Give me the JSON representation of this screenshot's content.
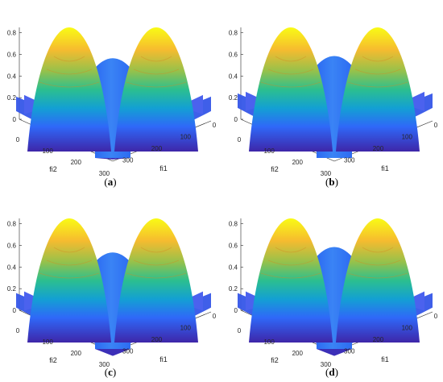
{
  "chart_data": [
    {
      "type": "surface",
      "panel": "(a)",
      "panel_letter": "a",
      "xlabel": "fi2",
      "ylabel": "fi1",
      "x_ticks": [
        "0",
        "100",
        "200",
        "300"
      ],
      "y_ticks": [
        "0",
        "100",
        "200",
        "300"
      ],
      "z_ticks": [
        "0",
        "0.2",
        "0.4",
        "0.6",
        "0.8"
      ],
      "zlim": [
        0,
        0.85
      ],
      "peak_z": 0.85,
      "center_ridge_z": 0.58,
      "edge_wing_z": 0.15,
      "base_z": 0.0,
      "colormap": [
        "#3e26a8",
        "#2f68f8",
        "#13a0d3",
        "#2cbf8f",
        "#97c14a",
        "#f6bb2f",
        "#f9fb15"
      ]
    },
    {
      "type": "surface",
      "panel": "(b)",
      "panel_letter": "b",
      "xlabel": "fi2",
      "ylabel": "fi1",
      "x_ticks": [
        "0",
        "100",
        "200",
        "300"
      ],
      "y_ticks": [
        "0",
        "100",
        "200",
        "300"
      ],
      "z_ticks": [
        "0",
        "0.2",
        "0.4",
        "0.6",
        "0.8"
      ],
      "zlim": [
        0,
        0.85
      ],
      "peak_z": 0.85,
      "center_ridge_z": 0.6,
      "edge_wing_z": 0.18,
      "base_z": 0.0,
      "colormap": [
        "#3e26a8",
        "#2f68f8",
        "#13a0d3",
        "#2cbf8f",
        "#97c14a",
        "#f6bb2f",
        "#f9fb15"
      ]
    },
    {
      "type": "surface",
      "panel": "(c)",
      "panel_letter": "c",
      "xlabel": "fi2",
      "ylabel": "fi1",
      "x_ticks": [
        "0",
        "100",
        "200",
        "300"
      ],
      "y_ticks": [
        "0",
        "100",
        "200",
        "300"
      ],
      "z_ticks": [
        "0",
        "0.2",
        "0.4",
        "0.6",
        "0.8"
      ],
      "zlim": [
        0,
        0.85
      ],
      "peak_z": 0.85,
      "center_ridge_z": 0.55,
      "edge_wing_z": 0.1,
      "base_z": 0.0,
      "colormap": [
        "#3e26a8",
        "#2f68f8",
        "#13a0d3",
        "#2cbf8f",
        "#97c14a",
        "#f6bb2f",
        "#f9fb15"
      ]
    },
    {
      "type": "surface",
      "panel": "(d)",
      "panel_letter": "d",
      "xlabel": "fi2",
      "ylabel": "fi1",
      "x_ticks": [
        "0",
        "100",
        "200",
        "300"
      ],
      "y_ticks": [
        "0",
        "100",
        "200",
        "300"
      ],
      "z_ticks": [
        "0",
        "0.2",
        "0.4",
        "0.6",
        "0.8"
      ],
      "zlim": [
        0,
        0.85
      ],
      "peak_z": 0.85,
      "center_ridge_z": 0.6,
      "edge_wing_z": 0.1,
      "base_z": 0.0,
      "colormap": [
        "#3e26a8",
        "#2f68f8",
        "#13a0d3",
        "#2cbf8f",
        "#97c14a",
        "#f6bb2f",
        "#f9fb15"
      ]
    }
  ]
}
